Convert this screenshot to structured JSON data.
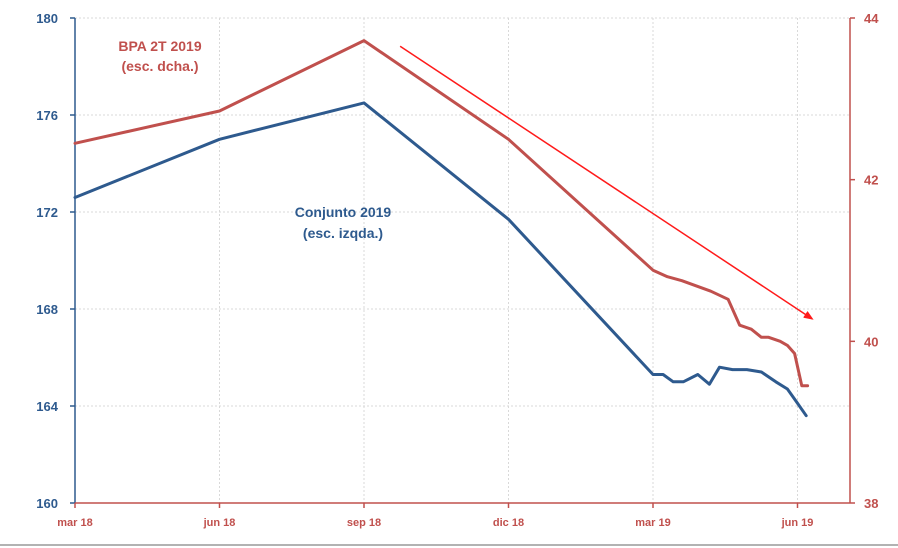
{
  "chart_data": {
    "type": "line",
    "x_categories": [
      "mar 18",
      "jun 18",
      "sep 18",
      "dic 18",
      "mar 19",
      "jun 19"
    ],
    "y_left": {
      "range": [
        160,
        180
      ],
      "ticks": [
        "160",
        "164",
        "168",
        "172",
        "176",
        "180"
      ],
      "color": "#2e5a8e"
    },
    "y_right": {
      "range": [
        38,
        44
      ],
      "ticks": [
        "38",
        "40",
        "42",
        "44"
      ],
      "color": "#c0504d"
    },
    "grid": true,
    "series": [
      {
        "name": "Conjunto 2019",
        "axis": "left",
        "color": "#2e5a8e",
        "label_line1": "Conjunto 2019",
        "label_line2": "(esc. izqda.)",
        "x": [
          0,
          1,
          2,
          3,
          4,
          4.07,
          4.14,
          4.21,
          4.31,
          4.39,
          4.46,
          4.55,
          4.65,
          4.75,
          4.85,
          4.93,
          4.99,
          5.06
        ],
        "values": [
          172.6,
          175.0,
          176.5,
          171.7,
          165.3,
          165.3,
          165.0,
          165.0,
          165.3,
          164.9,
          165.6,
          165.5,
          165.5,
          165.4,
          165.0,
          164.7,
          164.2,
          163.6
        ]
      },
      {
        "name": "BPA 2T 2019",
        "axis": "right",
        "color": "#c0504d",
        "label_line1": "BPA 2T 2019",
        "label_line2": "(esc. dcha.)",
        "x": [
          0,
          1,
          2,
          3,
          4,
          4.1,
          4.2,
          4.4,
          4.52,
          4.6,
          4.68,
          4.75,
          4.8,
          4.88,
          4.93,
          4.98,
          5.03,
          5.07
        ],
        "values": [
          42.45,
          42.85,
          43.72,
          42.5,
          40.88,
          40.8,
          40.75,
          40.62,
          40.52,
          40.2,
          40.15,
          40.05,
          40.05,
          40.0,
          39.95,
          39.85,
          39.45,
          39.45
        ]
      }
    ],
    "trend_arrow": {
      "axis": "right",
      "from": {
        "x": 2.25,
        "y": 43.65
      },
      "to": {
        "x": 5.1,
        "y": 40.28
      },
      "color": "#ff1a1a"
    }
  }
}
